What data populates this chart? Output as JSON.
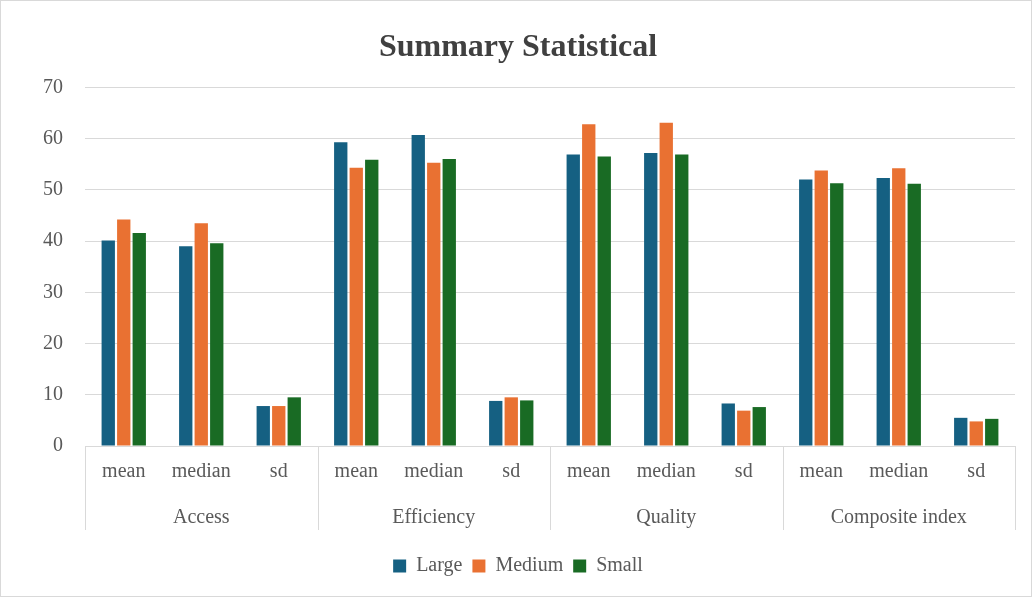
{
  "chart_data": {
    "type": "bar",
    "title": "Summary Statistical",
    "categories": [
      "mean",
      "median",
      "sd",
      "mean",
      "median",
      "sd",
      "mean",
      "median",
      "sd",
      "mean",
      "median",
      "sd"
    ],
    "annotations": [
      "Access",
      "Efficiency",
      "Quality",
      "Composite index"
    ],
    "series": [
      {
        "name": "Large",
        "color": "#156082",
        "values": [
          40.1,
          39.0,
          7.8,
          59.3,
          60.7,
          8.8,
          56.9,
          57.2,
          8.3,
          52.0,
          52.3,
          5.5
        ]
      },
      {
        "name": "Medium",
        "color": "#e97132",
        "values": [
          44.2,
          43.5,
          7.8,
          54.3,
          55.3,
          9.5,
          62.8,
          63.1,
          6.9,
          53.8,
          54.2,
          4.8
        ]
      },
      {
        "name": "Small",
        "color": "#196b24",
        "values": [
          41.6,
          39.6,
          9.5,
          55.9,
          56.0,
          8.9,
          56.5,
          56.9,
          7.6,
          51.3,
          51.2,
          5.3
        ]
      }
    ],
    "ylim": [
      0,
      70
    ],
    "yticks": [
      0,
      10,
      20,
      30,
      40,
      50,
      60,
      70
    ],
    "grid": "y",
    "legend": "bottom"
  }
}
